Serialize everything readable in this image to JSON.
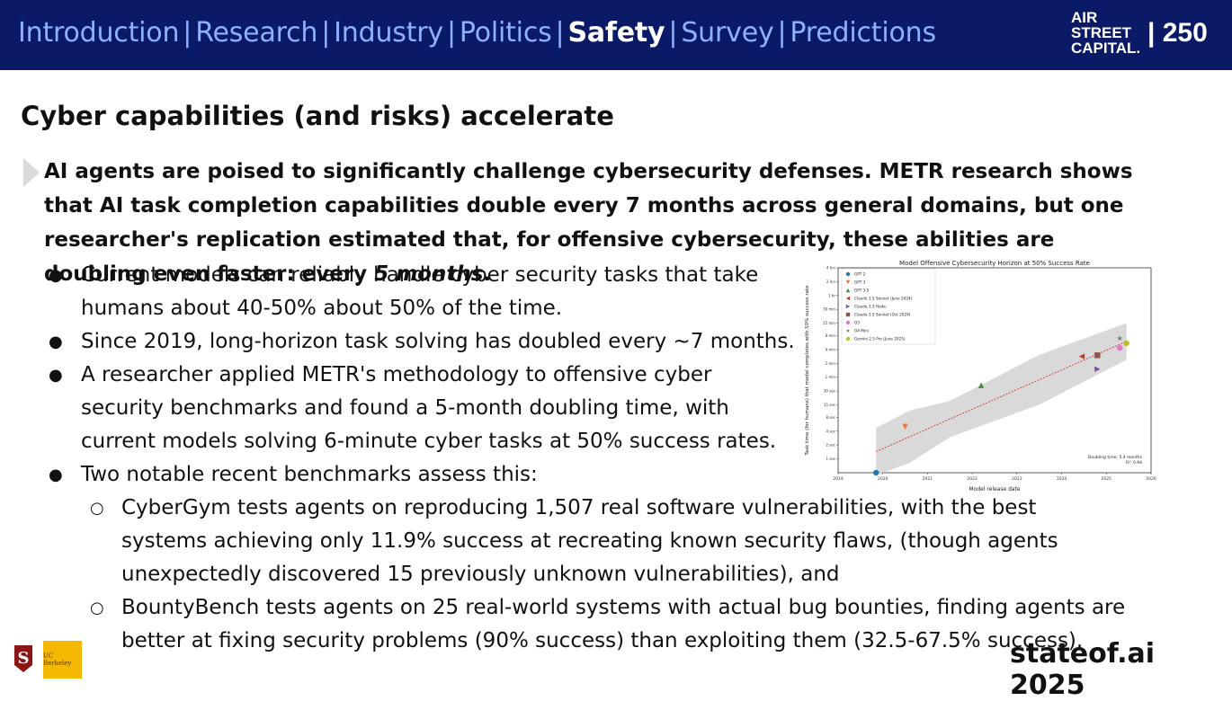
{
  "nav": {
    "items": [
      "Introduction",
      "Research",
      "Industry",
      "Politics",
      "Safety",
      "Survey",
      "Predictions"
    ],
    "active": "Safety"
  },
  "logo": {
    "line1": "AIR",
    "line2": "STREET",
    "line3": "CAPITAL."
  },
  "page_number": "| 250",
  "title": "Cyber capabilities (and risks) accelerate",
  "lead": {
    "text": "AI agents are poised to significantly challenge cybersecurity defenses. METR research shows that AI task completion capabilities double every 7 months across general domains, but one researcher's replication estimated that, for offensive cybersecurity, these abilities are doubling even faster: every ",
    "emphasis": "5 months",
    "end": "."
  },
  "bullets": [
    {
      "level": 1,
      "text": "Current models can reliably handle cyber security tasks that take humans about 40-50% about 50% of the time."
    },
    {
      "level": 1,
      "text": "Since 2019, long-horizon task solving has doubled every ~7 months."
    },
    {
      "level": 1,
      "text": "A researcher applied METR's methodology to offensive cyber security benchmarks and found a 5-month doubling time, with current models solving 6-minute cyber tasks at 50% success rates."
    },
    {
      "level": 1,
      "text": "Two notable recent benchmarks assess this:"
    },
    {
      "level": 2,
      "text": "CyberGym tests agents on reproducing 1,507 real software vulnerabilities, with the best systems achieving only 11.9% success at recreating known security flaws, (though agents unexpectedly discovered 15 previously unknown vulnerabilities), and"
    },
    {
      "level": 2,
      "text": "BountyBench tests agents on 25 real-world systems with actual bug bounties, finding agents are better at fixing security problems (90% success) than exploiting them (32.5-67.5% success)."
    }
  ],
  "chart_data": {
    "type": "scatter",
    "title": "Model Offensive Cybersecurity Horizon at 50% Success Rate",
    "xlabel": "Model release date",
    "ylabel": "Task time (for humans) that model completes with 50% success rate",
    "x_ticks": [
      "2019",
      "2020",
      "2021",
      "2022",
      "2023",
      "2024",
      "2025",
      "2026"
    ],
    "y_ticks": [
      "1 sec",
      "2 sec",
      "4 sec",
      "8 sec",
      "15 sec",
      "30 sec",
      "1 min",
      "2 min",
      "4 min",
      "8 min",
      "15 min",
      "30 min",
      "1 hr",
      "2 hrs",
      "4 hrs"
    ],
    "x_range": [
      2019,
      2026
    ],
    "y_scale": "log",
    "y_range_seconds": [
      0.5,
      14400
    ],
    "series": [
      {
        "name": "GPT 2",
        "date": 2019.85,
        "seconds": 0.5,
        "color": "#1f77b4",
        "marker": "circle"
      },
      {
        "name": "GPT 3",
        "date": 2020.5,
        "seconds": 5,
        "color": "#e8793a",
        "marker": "triangle-down"
      },
      {
        "name": "GPT 3.5",
        "date": 2022.2,
        "seconds": 40,
        "color": "#3a8f3a",
        "marker": "triangle-up"
      },
      {
        "name": "Claude 3.5 Sonnet (June 2024)",
        "date": 2024.45,
        "seconds": 170,
        "color": "#c0392b",
        "marker": "triangle-left"
      },
      {
        "name": "Claude 3.5 Haiku",
        "date": 2024.8,
        "seconds": 90,
        "color": "#7a4fa3",
        "marker": "triangle-right"
      },
      {
        "name": "Claude 3.5 Sonnet (Oct 2024)",
        "date": 2024.8,
        "seconds": 180,
        "color": "#8c564b",
        "marker": "square"
      },
      {
        "name": "O3",
        "date": 2025.3,
        "seconds": 260,
        "color": "#e377c2",
        "marker": "circle"
      },
      {
        "name": "O4 Mini",
        "date": 2025.3,
        "seconds": 420,
        "color": "#7f7f7f",
        "marker": "star"
      },
      {
        "name": "Gemini 2.5 Pro (June 2025)",
        "date": 2025.45,
        "seconds": 330,
        "color": "#bcbd22",
        "marker": "circle"
      }
    ],
    "annotation": {
      "line1": "Doubling time: 5.4 months",
      "line2": "R²: 0.94"
    },
    "legend": "top-left",
    "trend": "exponential fit with confidence band"
  },
  "footer": "stateof.ai 2025",
  "partner_logos": {
    "berkeley": "UC Berkeley"
  }
}
